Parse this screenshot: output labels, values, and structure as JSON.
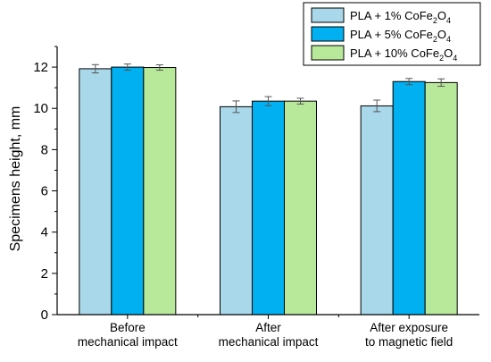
{
  "chart_data": {
    "type": "bar",
    "categories": [
      [
        "Before",
        "mechanical impact"
      ],
      [
        "After",
        "mechanical impact"
      ],
      [
        "After exposure",
        "to magnetic field"
      ]
    ],
    "series": [
      {
        "name_base": "PLA + 1% CoFe",
        "name_sub1": "2",
        "name_mid": "O",
        "name_sub2": "4",
        "color": "#a8d8ea",
        "values": [
          11.92,
          10.08,
          10.12
        ],
        "errors": [
          0.2,
          0.28,
          0.28
        ]
      },
      {
        "name_base": "PLA + 5% CoFe",
        "name_sub1": "2",
        "name_mid": "O",
        "name_sub2": "4",
        "color": "#00b0f0",
        "values": [
          12.0,
          10.35,
          11.3
        ],
        "errors": [
          0.15,
          0.22,
          0.15
        ]
      },
      {
        "name_base": "PLA + 10% CoFe",
        "name_sub1": "2",
        "name_mid": "O",
        "name_sub2": "4",
        "color": "#b8e89a",
        "values": [
          11.98,
          10.35,
          11.25
        ],
        "errors": [
          0.13,
          0.14,
          0.18
        ]
      }
    ],
    "ylabel": "Specimens height, mm",
    "ylim": [
      0,
      13
    ],
    "yticks": [
      0,
      2,
      4,
      6,
      8,
      10,
      12
    ],
    "legend_position": "top-right",
    "grid": false
  }
}
